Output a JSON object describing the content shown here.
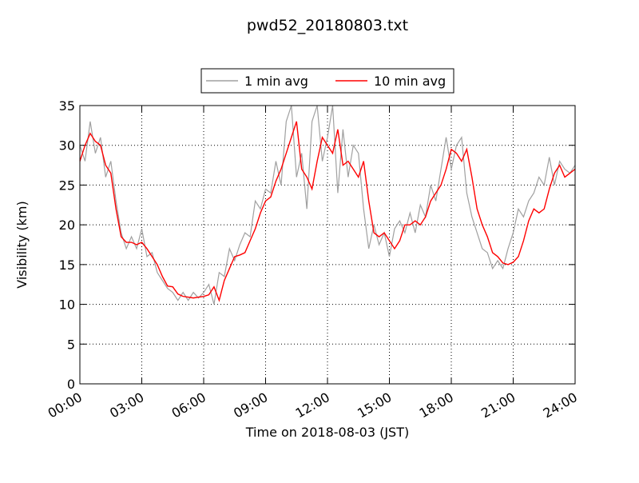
{
  "chart_data": {
    "type": "line",
    "title": "pwd52_20180803.txt",
    "xlabel": "Time on 2018-08-03 (JST)",
    "ylabel": "Visibility (km)",
    "x": [
      0,
      15,
      30,
      45,
      60,
      75,
      90,
      105,
      120,
      135,
      150,
      165,
      180,
      195,
      210,
      225,
      240,
      255,
      270,
      285,
      300,
      315,
      330,
      345,
      360,
      375,
      390,
      405,
      420,
      435,
      450,
      465,
      480,
      495,
      510,
      525,
      540,
      555,
      570,
      585,
      600,
      615,
      630,
      645,
      660,
      675,
      690,
      705,
      720,
      735,
      750,
      765,
      780,
      795,
      810,
      825,
      840,
      855,
      870,
      885,
      900,
      915,
      930,
      945,
      960,
      975,
      990,
      1005,
      1020,
      1035,
      1050,
      1065,
      1080,
      1095,
      1110,
      1125,
      1140,
      1155,
      1170,
      1185,
      1200,
      1215,
      1230,
      1245,
      1260,
      1275,
      1290,
      1305,
      1320,
      1335,
      1350,
      1365,
      1380,
      1395,
      1410,
      1425,
      1440
    ],
    "series": [
      {
        "name": "1 min avg",
        "color": "#a0a0a0",
        "values": [
          30,
          28,
          33,
          29,
          31,
          26,
          28,
          23,
          19,
          17,
          18.5,
          17,
          19.5,
          16,
          16.5,
          14,
          13,
          12,
          11.5,
          10.5,
          11.5,
          10.5,
          11.5,
          10.8,
          11.5,
          12.5,
          10,
          14,
          13.5,
          17,
          15.5,
          17.5,
          19,
          18.5,
          23,
          22,
          24.5,
          24,
          28,
          25,
          33,
          35,
          26,
          29,
          22,
          33,
          35,
          28,
          31,
          35,
          24,
          32,
          26,
          30,
          29,
          22,
          17,
          20,
          17.5,
          19,
          16,
          19.5,
          20.5,
          19,
          21.5,
          19,
          22.5,
          21,
          25,
          23,
          27,
          31,
          27,
          30,
          31,
          24,
          21,
          19,
          17,
          16.5,
          14.5,
          15.5,
          14.5,
          17,
          19,
          22,
          21,
          23,
          24,
          26,
          25,
          28.5,
          25,
          28,
          27,
          26.5,
          27.5
        ]
      },
      {
        "name": "10 min avg",
        "color": "#ff0000",
        "values": [
          28,
          30,
          31.5,
          30.5,
          30,
          27.5,
          26.5,
          22,
          18.5,
          17.8,
          17.8,
          17.5,
          17.8,
          17,
          16,
          15,
          13.5,
          12.3,
          12.2,
          11.3,
          11,
          10.9,
          10.8,
          10.9,
          11,
          11.2,
          12.2,
          10.5,
          13,
          14.5,
          16,
          16.2,
          16.5,
          18,
          19.5,
          21.5,
          23,
          23.5,
          25.5,
          27,
          29,
          31,
          33,
          27,
          26,
          24.5,
          28,
          31,
          30,
          29,
          32,
          27.5,
          28,
          27,
          26,
          28,
          23,
          19,
          18.5,
          19,
          18,
          17,
          18,
          20,
          20,
          20.5,
          20,
          21,
          23,
          24,
          25,
          27,
          29.5,
          29,
          28,
          29.5,
          26,
          22,
          20,
          18.5,
          16.5,
          16,
          15.2,
          15,
          15.3,
          16,
          18,
          20.5,
          22,
          21.5,
          22,
          24.5,
          26.5,
          27.5,
          26,
          26.5,
          27
        ]
      }
    ],
    "xlim": [
      0,
      1440
    ],
    "xticks": [
      {
        "value": 0,
        "label": "00:00"
      },
      {
        "value": 180,
        "label": "03:00"
      },
      {
        "value": 360,
        "label": "06:00"
      },
      {
        "value": 540,
        "label": "09:00"
      },
      {
        "value": 720,
        "label": "12:00"
      },
      {
        "value": 900,
        "label": "15:00"
      },
      {
        "value": 1080,
        "label": "18:00"
      },
      {
        "value": 1260,
        "label": "21:00"
      },
      {
        "value": 1440,
        "label": "24:00"
      }
    ],
    "ylim": [
      0,
      35
    ],
    "yticks": [
      0,
      5,
      10,
      15,
      20,
      25,
      30,
      35
    ],
    "grid": true,
    "legend": "upper center"
  }
}
